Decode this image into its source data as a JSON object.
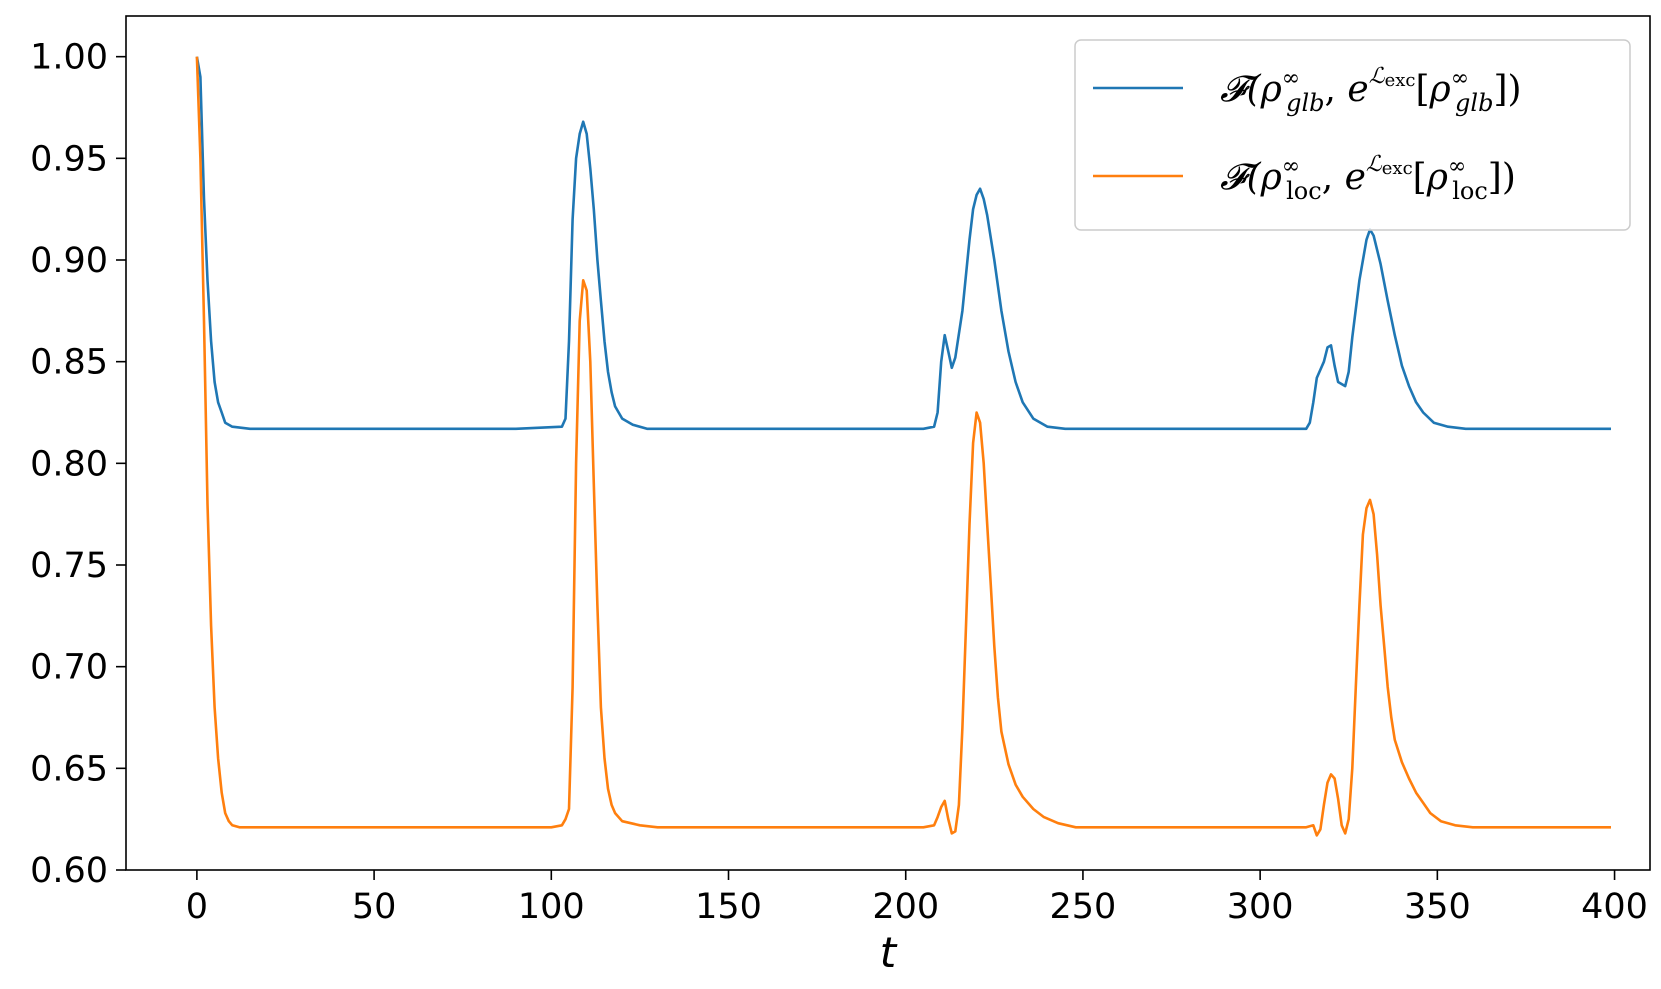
{
  "chart_data": {
    "type": "line",
    "title": "",
    "xlabel": "t",
    "ylabel": "",
    "xlim": [
      -20,
      410
    ],
    "ylim": [
      0.6,
      1.02
    ],
    "xticks": [
      0,
      50,
      100,
      150,
      200,
      250,
      300,
      350,
      400
    ],
    "yticks": [
      0.6,
      0.65,
      0.7,
      0.75,
      0.8,
      0.85,
      0.9,
      0.95,
      1.0
    ],
    "xtick_labels": [
      "0",
      "50",
      "100",
      "150",
      "200",
      "250",
      "300",
      "350",
      "400"
    ],
    "ytick_labels": [
      "0.60",
      "0.65",
      "0.70",
      "0.75",
      "0.80",
      "0.85",
      "0.90",
      "0.95",
      "1.00"
    ],
    "grid": false,
    "legend_position": "top-right",
    "series": [
      {
        "name": "F(ρ∞glb, eLexc[ρ∞glb])",
        "legend": {
          "sub": "glb",
          "exp_sub": "exc"
        },
        "color": "#1f77b4",
        "points": [
          [
            0,
            1.0
          ],
          [
            1,
            0.99
          ],
          [
            2,
            0.93
          ],
          [
            3,
            0.89
          ],
          [
            4,
            0.86
          ],
          [
            5,
            0.84
          ],
          [
            6,
            0.83
          ],
          [
            7,
            0.825
          ],
          [
            8,
            0.82
          ],
          [
            10,
            0.818
          ],
          [
            15,
            0.817
          ],
          [
            30,
            0.817
          ],
          [
            60,
            0.817
          ],
          [
            90,
            0.817
          ],
          [
            103,
            0.818
          ],
          [
            104,
            0.822
          ],
          [
            105,
            0.86
          ],
          [
            106,
            0.92
          ],
          [
            107,
            0.95
          ],
          [
            108,
            0.962
          ],
          [
            109,
            0.968
          ],
          [
            110,
            0.962
          ],
          [
            111,
            0.945
          ],
          [
            112,
            0.925
          ],
          [
            113,
            0.9
          ],
          [
            114,
            0.88
          ],
          [
            115,
            0.86
          ],
          [
            116,
            0.845
          ],
          [
            117,
            0.835
          ],
          [
            118,
            0.828
          ],
          [
            120,
            0.822
          ],
          [
            123,
            0.819
          ],
          [
            127,
            0.817
          ],
          [
            150,
            0.817
          ],
          [
            180,
            0.817
          ],
          [
            205,
            0.817
          ],
          [
            208,
            0.818
          ],
          [
            209,
            0.825
          ],
          [
            210,
            0.85
          ],
          [
            211,
            0.863
          ],
          [
            212,
            0.855
          ],
          [
            213,
            0.847
          ],
          [
            214,
            0.852
          ],
          [
            216,
            0.875
          ],
          [
            218,
            0.91
          ],
          [
            219,
            0.925
          ],
          [
            220,
            0.932
          ],
          [
            221,
            0.935
          ],
          [
            222,
            0.93
          ],
          [
            223,
            0.922
          ],
          [
            225,
            0.9
          ],
          [
            227,
            0.875
          ],
          [
            229,
            0.855
          ],
          [
            231,
            0.84
          ],
          [
            233,
            0.83
          ],
          [
            236,
            0.822
          ],
          [
            240,
            0.818
          ],
          [
            245,
            0.817
          ],
          [
            270,
            0.817
          ],
          [
            300,
            0.817
          ],
          [
            313,
            0.817
          ],
          [
            314,
            0.82
          ],
          [
            315,
            0.83
          ],
          [
            316,
            0.842
          ],
          [
            318,
            0.85
          ],
          [
            319,
            0.857
          ],
          [
            320,
            0.858
          ],
          [
            321,
            0.848
          ],
          [
            322,
            0.84
          ],
          [
            324,
            0.838
          ],
          [
            325,
            0.845
          ],
          [
            326,
            0.862
          ],
          [
            328,
            0.89
          ],
          [
            330,
            0.91
          ],
          [
            331,
            0.915
          ],
          [
            332,
            0.912
          ],
          [
            334,
            0.898
          ],
          [
            336,
            0.88
          ],
          [
            338,
            0.863
          ],
          [
            340,
            0.848
          ],
          [
            342,
            0.838
          ],
          [
            344,
            0.83
          ],
          [
            346,
            0.825
          ],
          [
            349,
            0.82
          ],
          [
            353,
            0.818
          ],
          [
            358,
            0.817
          ],
          [
            380,
            0.817
          ],
          [
            399,
            0.817
          ]
        ]
      },
      {
        "name": "F(ρ∞loc, eLexc[ρ∞loc])",
        "legend": {
          "sub": "loc",
          "exp_sub": "exc"
        },
        "color": "#ff7f0e",
        "points": [
          [
            0,
            1.0
          ],
          [
            1,
            0.95
          ],
          [
            2,
            0.87
          ],
          [
            3,
            0.78
          ],
          [
            4,
            0.72
          ],
          [
            5,
            0.68
          ],
          [
            6,
            0.655
          ],
          [
            7,
            0.638
          ],
          [
            8,
            0.628
          ],
          [
            9,
            0.624
          ],
          [
            10,
            0.622
          ],
          [
            12,
            0.621
          ],
          [
            30,
            0.621
          ],
          [
            60,
            0.621
          ],
          [
            90,
            0.621
          ],
          [
            100,
            0.621
          ],
          [
            103,
            0.622
          ],
          [
            104,
            0.625
          ],
          [
            105,
            0.63
          ],
          [
            106,
            0.69
          ],
          [
            107,
            0.8
          ],
          [
            108,
            0.87
          ],
          [
            109,
            0.89
          ],
          [
            110,
            0.885
          ],
          [
            111,
            0.85
          ],
          [
            112,
            0.79
          ],
          [
            113,
            0.73
          ],
          [
            114,
            0.68
          ],
          [
            115,
            0.655
          ],
          [
            116,
            0.64
          ],
          [
            117,
            0.632
          ],
          [
            118,
            0.628
          ],
          [
            120,
            0.624
          ],
          [
            125,
            0.622
          ],
          [
            130,
            0.621
          ],
          [
            160,
            0.621
          ],
          [
            190,
            0.621
          ],
          [
            205,
            0.621
          ],
          [
            208,
            0.622
          ],
          [
            209,
            0.626
          ],
          [
            210,
            0.631
          ],
          [
            211,
            0.634
          ],
          [
            212,
            0.625
          ],
          [
            213,
            0.618
          ],
          [
            214,
            0.619
          ],
          [
            215,
            0.632
          ],
          [
            216,
            0.67
          ],
          [
            217,
            0.72
          ],
          [
            218,
            0.77
          ],
          [
            219,
            0.81
          ],
          [
            220,
            0.825
          ],
          [
            221,
            0.82
          ],
          [
            222,
            0.8
          ],
          [
            223,
            0.77
          ],
          [
            224,
            0.74
          ],
          [
            225,
            0.71
          ],
          [
            226,
            0.685
          ],
          [
            227,
            0.668
          ],
          [
            229,
            0.652
          ],
          [
            231,
            0.642
          ],
          [
            233,
            0.636
          ],
          [
            236,
            0.63
          ],
          [
            239,
            0.626
          ],
          [
            243,
            0.623
          ],
          [
            248,
            0.621
          ],
          [
            280,
            0.621
          ],
          [
            300,
            0.621
          ],
          [
            313,
            0.621
          ],
          [
            315,
            0.622
          ],
          [
            316,
            0.617
          ],
          [
            317,
            0.62
          ],
          [
            318,
            0.632
          ],
          [
            319,
            0.643
          ],
          [
            320,
            0.647
          ],
          [
            321,
            0.645
          ],
          [
            322,
            0.635
          ],
          [
            323,
            0.622
          ],
          [
            324,
            0.618
          ],
          [
            325,
            0.625
          ],
          [
            326,
            0.65
          ],
          [
            327,
            0.69
          ],
          [
            328,
            0.73
          ],
          [
            329,
            0.765
          ],
          [
            330,
            0.778
          ],
          [
            331,
            0.782
          ],
          [
            332,
            0.775
          ],
          [
            333,
            0.755
          ],
          [
            334,
            0.73
          ],
          [
            335,
            0.71
          ],
          [
            336,
            0.69
          ],
          [
            337,
            0.675
          ],
          [
            338,
            0.664
          ],
          [
            340,
            0.653
          ],
          [
            342,
            0.645
          ],
          [
            344,
            0.638
          ],
          [
            346,
            0.633
          ],
          [
            348,
            0.628
          ],
          [
            351,
            0.624
          ],
          [
            355,
            0.622
          ],
          [
            360,
            0.621
          ],
          [
            380,
            0.621
          ],
          [
            399,
            0.621
          ]
        ]
      }
    ]
  }
}
